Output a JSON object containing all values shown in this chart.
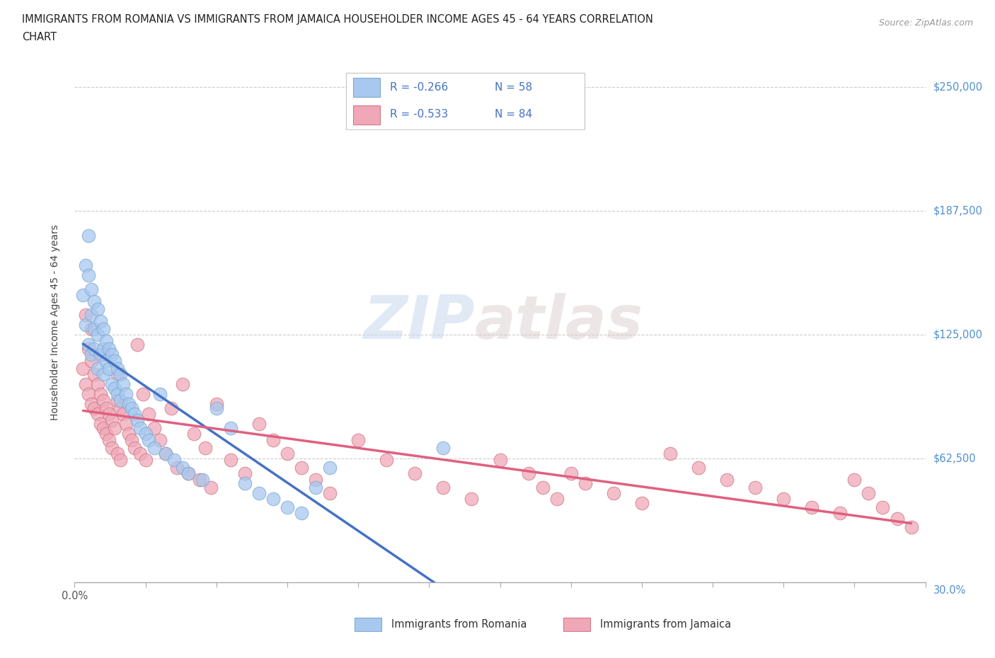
{
  "title_line1": "IMMIGRANTS FROM ROMANIA VS IMMIGRANTS FROM JAMAICA HOUSEHOLDER INCOME AGES 45 - 64 YEARS CORRELATION",
  "title_line2": "CHART",
  "source": "Source: ZipAtlas.com",
  "ylabel": "Householder Income Ages 45 - 64 years",
  "xlim": [
    0.0,
    0.3
  ],
  "ylim": [
    0,
    262500
  ],
  "xticks": [
    0.0,
    0.025,
    0.05,
    0.075,
    0.1,
    0.125,
    0.15,
    0.175,
    0.2,
    0.225,
    0.25,
    0.275,
    0.3
  ],
  "yticks": [
    0,
    62500,
    125000,
    187500,
    250000
  ],
  "ytick_labels": [
    "",
    "$62,500",
    "$125,000",
    "$187,500",
    "$250,000"
  ],
  "romania_color": "#a8c8f0",
  "romania_edge": "#7aaad0",
  "jamaica_color": "#f0a8b8",
  "jamaica_edge": "#d07888",
  "romania_line_color": "#4472c4",
  "jamaica_line_color": "#e06080",
  "dash_color": "#a0b8d0",
  "romania_R": -0.266,
  "romania_N": 58,
  "jamaica_R": -0.533,
  "jamaica_N": 84,
  "watermark_zip": "ZIP",
  "watermark_atlas": "atlas",
  "romania_scatter_x": [
    0.003,
    0.004,
    0.004,
    0.005,
    0.005,
    0.005,
    0.006,
    0.006,
    0.006,
    0.007,
    0.007,
    0.007,
    0.008,
    0.008,
    0.008,
    0.009,
    0.009,
    0.01,
    0.01,
    0.01,
    0.011,
    0.011,
    0.012,
    0.012,
    0.013,
    0.013,
    0.014,
    0.014,
    0.015,
    0.015,
    0.016,
    0.016,
    0.017,
    0.018,
    0.019,
    0.02,
    0.021,
    0.022,
    0.023,
    0.025,
    0.026,
    0.028,
    0.03,
    0.032,
    0.035,
    0.038,
    0.04,
    0.045,
    0.05,
    0.055,
    0.06,
    0.065,
    0.07,
    0.075,
    0.08,
    0.085,
    0.09,
    0.13
  ],
  "romania_scatter_y": [
    145000,
    160000,
    130000,
    175000,
    155000,
    120000,
    148000,
    135000,
    115000,
    142000,
    128000,
    118000,
    138000,
    125000,
    108000,
    132000,
    115000,
    128000,
    118000,
    105000,
    122000,
    112000,
    118000,
    108000,
    115000,
    100000,
    112000,
    98000,
    108000,
    95000,
    105000,
    92000,
    100000,
    95000,
    90000,
    88000,
    85000,
    82000,
    78000,
    75000,
    72000,
    68000,
    95000,
    65000,
    62000,
    58000,
    55000,
    52000,
    88000,
    78000,
    50000,
    45000,
    42000,
    38000,
    35000,
    48000,
    58000,
    68000
  ],
  "jamaica_scatter_x": [
    0.003,
    0.004,
    0.005,
    0.005,
    0.006,
    0.006,
    0.007,
    0.007,
    0.008,
    0.008,
    0.009,
    0.009,
    0.01,
    0.01,
    0.011,
    0.011,
    0.012,
    0.012,
    0.013,
    0.013,
    0.014,
    0.015,
    0.015,
    0.016,
    0.016,
    0.017,
    0.018,
    0.019,
    0.02,
    0.021,
    0.022,
    0.023,
    0.024,
    0.025,
    0.026,
    0.028,
    0.03,
    0.032,
    0.034,
    0.036,
    0.038,
    0.04,
    0.042,
    0.044,
    0.046,
    0.048,
    0.05,
    0.055,
    0.06,
    0.065,
    0.07,
    0.075,
    0.08,
    0.085,
    0.09,
    0.1,
    0.11,
    0.12,
    0.13,
    0.14,
    0.15,
    0.16,
    0.165,
    0.17,
    0.175,
    0.18,
    0.19,
    0.2,
    0.21,
    0.22,
    0.23,
    0.24,
    0.25,
    0.26,
    0.27,
    0.275,
    0.28,
    0.285,
    0.29,
    0.295,
    0.004,
    0.006,
    0.01,
    0.015
  ],
  "jamaica_scatter_y": [
    108000,
    100000,
    118000,
    95000,
    112000,
    90000,
    105000,
    88000,
    100000,
    85000,
    95000,
    80000,
    92000,
    78000,
    88000,
    75000,
    85000,
    72000,
    82000,
    68000,
    78000,
    92000,
    65000,
    88000,
    62000,
    85000,
    80000,
    75000,
    72000,
    68000,
    120000,
    65000,
    95000,
    62000,
    85000,
    78000,
    72000,
    65000,
    88000,
    58000,
    100000,
    55000,
    75000,
    52000,
    68000,
    48000,
    90000,
    62000,
    55000,
    80000,
    72000,
    65000,
    58000,
    52000,
    45000,
    72000,
    62000,
    55000,
    48000,
    42000,
    62000,
    55000,
    48000,
    42000,
    55000,
    50000,
    45000,
    40000,
    65000,
    58000,
    52000,
    48000,
    42000,
    38000,
    35000,
    52000,
    45000,
    38000,
    32000,
    28000,
    135000,
    128000,
    115000,
    105000
  ],
  "romania_trend_x0": 0.003,
  "romania_trend_x1": 0.2,
  "romania_trend_dash_x0": 0.2,
  "romania_trend_dash_x1": 0.3,
  "jamaica_trend_x0": 0.003,
  "jamaica_trend_x1": 0.295
}
